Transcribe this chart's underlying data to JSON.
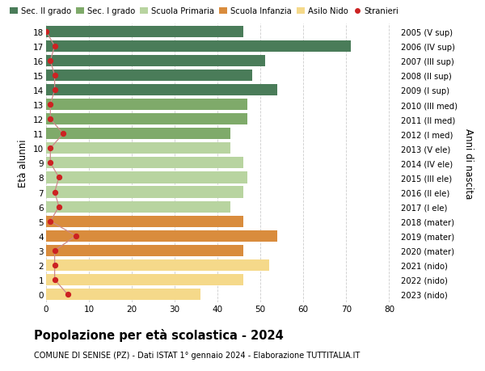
{
  "ages": [
    18,
    17,
    16,
    15,
    14,
    13,
    12,
    11,
    10,
    9,
    8,
    7,
    6,
    5,
    4,
    3,
    2,
    1,
    0
  ],
  "years": [
    "2005 (V sup)",
    "2006 (IV sup)",
    "2007 (III sup)",
    "2008 (II sup)",
    "2009 (I sup)",
    "2010 (III med)",
    "2011 (II med)",
    "2012 (I med)",
    "2013 (V ele)",
    "2014 (IV ele)",
    "2015 (III ele)",
    "2016 (II ele)",
    "2017 (I ele)",
    "2018 (mater)",
    "2019 (mater)",
    "2020 (mater)",
    "2021 (nido)",
    "2022 (nido)",
    "2023 (nido)"
  ],
  "values": [
    46,
    71,
    51,
    48,
    54,
    47,
    47,
    43,
    43,
    46,
    47,
    46,
    43,
    46,
    54,
    46,
    52,
    46,
    36
  ],
  "stranieri": [
    0,
    2,
    1,
    2,
    2,
    1,
    1,
    4,
    1,
    1,
    3,
    2,
    3,
    1,
    7,
    2,
    2,
    2,
    5
  ],
  "bar_colors": [
    "#4a7c59",
    "#4a7c59",
    "#4a7c59",
    "#4a7c59",
    "#4a7c59",
    "#7faa6a",
    "#7faa6a",
    "#7faa6a",
    "#b8d4a0",
    "#b8d4a0",
    "#b8d4a0",
    "#b8d4a0",
    "#b8d4a0",
    "#d98c3d",
    "#d98c3d",
    "#d98c3d",
    "#f5d98a",
    "#f5d98a",
    "#f5d98a"
  ],
  "legend_labels": [
    "Sec. II grado",
    "Sec. I grado",
    "Scuola Primaria",
    "Scuola Infanzia",
    "Asilo Nido",
    "Stranieri"
  ],
  "legend_colors_list": [
    "#4a7c59",
    "#7faa6a",
    "#b8d4a0",
    "#d98c3d",
    "#f5d98a",
    "#cc2222"
  ],
  "title": "Popolazione per età scolastica - 2024",
  "subtitle": "COMUNE DI SENISE (PZ) - Dati ISTAT 1° gennaio 2024 - Elaborazione TUTTITALIA.IT",
  "ylabel_left": "Età alunni",
  "ylabel_right": "Anni di nascita",
  "xlim": [
    0,
    82
  ],
  "xticks": [
    0,
    10,
    20,
    30,
    40,
    50,
    60,
    70,
    80
  ],
  "background_color": "#ffffff",
  "grid_color": "#cccccc",
  "stranieri_color": "#cc2222",
  "stranieri_line_color": "#cc8888",
  "bar_height": 0.78,
  "ylim_min": -0.55,
  "ylim_max": 18.55
}
